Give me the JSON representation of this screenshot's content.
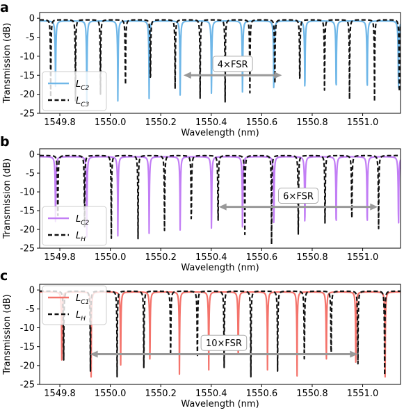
{
  "chart_data": [
    {
      "type": "line",
      "panel_label": "a",
      "xlabel": "Wavelength (nm)",
      "ylabel": "Transmission (dB)",
      "xlim": [
        1549.72,
        1551.15
      ],
      "ylim": [
        -25,
        1.5
      ],
      "xticks": [
        "1549.8",
        "1550.0",
        "1550.2",
        "1550.4",
        "1550.6",
        "1550.8",
        "1551.0"
      ],
      "xtick_values": [
        1549.8,
        1550.0,
        1550.2,
        1550.4,
        1550.6,
        1550.8,
        1551.0
      ],
      "yticks": [
        "0",
        "-5",
        "-10",
        "-15",
        "-20",
        "-25"
      ],
      "ytick_values": [
        0,
        -5,
        -10,
        -15,
        -20,
        -25
      ],
      "legend_position": "lower-left",
      "series": [
        {
          "name": "C2",
          "legend_main": "L",
          "color": "#6fb7e8",
          "dash": "solid",
          "fsr": 0.1235,
          "resonances": [
            1549.783,
            1549.907,
            1550.03,
            1550.154,
            1550.277,
            1550.401,
            1550.524,
            1550.648,
            1550.771,
            1550.895,
            1551.018,
            1551.142
          ],
          "depths": [
            -18,
            -23,
            -23,
            -23.5,
            -22.5,
            -23.5,
            -23.5,
            -23,
            -22.5,
            -23,
            -22.5,
            -22
          ],
          "baseline": -0.7
        },
        {
          "name": "C3",
          "legend_main": "L",
          "color": "#111111",
          "dash": "dashed",
          "fsr": 0.0987,
          "resonances": [
            1549.764,
            1549.862,
            1549.961,
            1550.06,
            1550.159,
            1550.257,
            1550.356,
            1550.455,
            1550.553,
            1550.652,
            1550.751,
            1550.849,
            1550.948,
            1551.047,
            1551.145
          ],
          "depths": [
            -22,
            -22,
            -22,
            -22,
            -22,
            -22,
            -22,
            -22,
            -22,
            -22,
            -22,
            -22,
            -22,
            -22,
            -22
          ],
          "baseline": -0.4
        }
      ],
      "annotation": {
        "text": "4×FSR",
        "x_start": 1550.29,
        "x_end": 1550.68,
        "y": -15,
        "text_y": -12
      }
    },
    {
      "type": "line",
      "panel_label": "b",
      "xlabel": "Wavelength (nm)",
      "ylabel": "Transmission (dB)",
      "xlim": [
        1549.72,
        1551.15
      ],
      "ylim": [
        -25,
        1.5
      ],
      "xticks": [
        "1549.8",
        "1550.0",
        "1550.2",
        "1550.4",
        "1550.6",
        "1550.8",
        "1551.0"
      ],
      "xtick_values": [
        1549.8,
        1550.0,
        1550.2,
        1550.4,
        1550.6,
        1550.8,
        1551.0
      ],
      "yticks": [
        "0",
        "-5",
        "-10",
        "-15",
        "-20",
        "-25"
      ],
      "ytick_values": [
        0,
        -5,
        -10,
        -15,
        -20,
        -25
      ],
      "legend_position": "lower-left",
      "series": [
        {
          "name": "C2",
          "legend_main": "L",
          "color": "#c27ef5",
          "dash": "solid",
          "fsr": 0.1235,
          "resonances": [
            1549.783,
            1549.907,
            1550.03,
            1550.154,
            1550.277,
            1550.401,
            1550.524,
            1550.648,
            1550.771,
            1550.895,
            1551.018,
            1551.142
          ],
          "depths": [
            -18,
            -23,
            -23,
            -23.5,
            -22.5,
            -23.5,
            -23.5,
            -23,
            -22.5,
            -23.5,
            -22.5,
            -22
          ],
          "baseline": -0.6
        },
        {
          "name": "H",
          "legend_main": "L",
          "color": "#111111",
          "dash": "dashed",
          "fsr": 0.1059,
          "resonances": [
            1549.792,
            1549.898,
            1550.004,
            1550.11,
            1550.215,
            1550.321,
            1550.427,
            1550.533,
            1550.639,
            1550.745,
            1550.851,
            1550.957,
            1551.063
          ],
          "depths": [
            -23,
            -23,
            -23,
            -23,
            -23,
            -23,
            -23,
            -24,
            -24,
            -23,
            -24,
            -24,
            -23
          ],
          "baseline": -0.3
        }
      ],
      "annotation": {
        "text": "6×FSR",
        "x_start": 1550.43,
        "x_end": 1551.06,
        "y": -14,
        "text_y": -11
      }
    },
    {
      "type": "line",
      "panel_label": "c",
      "xlabel": "Wavelength (nm)",
      "ylabel": "Transmission (dB)",
      "xlim": [
        1549.72,
        1551.15
      ],
      "ylim": [
        -25,
        1.5
      ],
      "xticks": [
        "1549.8",
        "1550.0",
        "1550.2",
        "1550.4",
        "1550.6",
        "1550.8",
        "1551.0"
      ],
      "xtick_values": [
        1549.8,
        1550.0,
        1550.2,
        1550.4,
        1550.6,
        1550.8,
        1551.0
      ],
      "yticks": [
        "0",
        "-5",
        "-10",
        "-15",
        "-20",
        "-25"
      ],
      "ytick_values": [
        0,
        -5,
        -10,
        -15,
        -20,
        -25
      ],
      "legend_position": "upper-left",
      "series": [
        {
          "name": "C1",
          "legend_main": "L",
          "color": "#f4736b",
          "dash": "solid",
          "fsr": 0.1165,
          "resonances": [
            1549.808,
            1549.924,
            1550.041,
            1550.157,
            1550.274,
            1550.39,
            1550.507,
            1550.623,
            1550.74,
            1550.856,
            1550.973,
            1551.089
          ],
          "depths": [
            -21,
            -23,
            -23,
            -23,
            -23,
            -23,
            -23,
            -23,
            -23,
            -23,
            -23,
            -23
          ],
          "baseline": -0.5
        },
        {
          "name": "H",
          "legend_main": "L",
          "color": "#111111",
          "dash": "dashed",
          "fsr": 0.1059,
          "resonances": [
            1549.815,
            1549.921,
            1550.027,
            1550.133,
            1550.239,
            1550.345,
            1550.451,
            1550.557,
            1550.663,
            1550.769,
            1550.875,
            1550.981,
            1551.087
          ],
          "depths": [
            -24,
            -23,
            -23,
            -23,
            -23,
            -23,
            -23,
            -23,
            -23,
            -23,
            -23,
            -23,
            -23
          ],
          "baseline": -0.3
        }
      ],
      "annotation": {
        "text": "10×FSR",
        "x_start": 1549.92,
        "x_end": 1550.98,
        "y": -17,
        "text_y": -14
      }
    }
  ]
}
